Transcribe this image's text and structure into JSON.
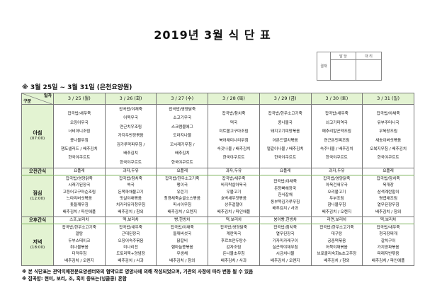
{
  "title": "2019년 3월 식 단 표",
  "approval": {
    "label": "결재",
    "cols": [
      "담 당",
      "대 리"
    ]
  },
  "subtitle": "※ 3월 25일 ~ 3월 31일 (은천요양원)",
  "table": {
    "corner_top": "일자",
    "corner_bottom": "구분",
    "days": [
      "3 / 25 (월)",
      "3 / 26 (화)",
      "3 / 27 (수)",
      "3 / 28 (목)",
      "3 / 29 (금)",
      "3 / 30 (토)",
      "3 / 31 (일)"
    ],
    "rows": [
      {
        "key": "breakfast",
        "label": "아침",
        "time": "(07:00)",
        "cells": [
          [
            "잡곡밥/새우죽",
            "오징어무국",
            "너비아니조림",
            "콩나물무침",
            "햄도샐러드 / 배추김치",
            "한국야쿠르트"
          ],
          [
            "잡곡밥/야채죽",
            "어묵무국",
            "연근치우조림",
            "가지두반장볶음",
            "김가루꼭파무침 /",
            "배추김치",
            "한국야쿠르트"
          ],
          [
            "잡곡밥/영양닭죽",
            "소고기무국",
            "스크램블에그",
            "도라지나물",
            "꼬시래기무침 /",
            "배추김치",
            "한국야쿠르트"
          ],
          [
            "잡곡밥/참치죽",
            "떡국",
            "미트볼고구마조림",
            "북어채미나리무침",
            "숙갓나물 / 배추김치",
            "한국야쿠르트"
          ],
          [
            "잡곡밥/한우소고기죽",
            "콩나물국",
            "돼지고기피망볶음",
            "아몬드멸치볶음",
            "얼갈이나물 / 배추김치",
            "한국야쿠르트"
          ],
          [
            "잡곡밥/새우죽",
            "쇠고기미역국",
            "메추리알곤약조림",
            "연근돈민찌조림",
            "숙주나물 / 배추김치",
            "한국야쿠르트"
          ],
          [
            "잡곡밥/야채죽",
            "유부주머니국",
            "우육장조림",
            "새송이버섯볶음",
            "오복지무침 / 배추김치",
            "한국야쿠르트"
          ]
        ]
      },
      {
        "key": "snack",
        "label": "오전간식",
        "time": "",
        "cells": [
          [
            "요플레"
          ],
          [
            "과자,두유"
          ],
          [
            "요플레"
          ],
          [
            "과자,두유"
          ],
          [
            "요플레"
          ],
          [
            "과자,두유"
          ],
          [
            "요플레"
          ]
        ]
      },
      {
        "key": "lunch",
        "label": "점심",
        "time": "(12:00)",
        "cells": [
          [
            "잡곡밥/영양닭죽",
            "시래기된장국",
            "고등어고구마순조림",
            "느타리버섯볶음",
            "톳들깨무침",
            "배추김치 / 파인애플"
          ],
          [
            "잡곡밥/참치죽",
            "쑥국",
            "돈목파채불고기",
            "맛살야채볶음",
            "치커리유자청무침",
            "배추김치 / 참외"
          ],
          [
            "잡곡밥/한우소고기죽",
            "팽이국",
            "유린기",
            "청경채죽순굴소스볶음",
            "파시아무침",
            "배추김치 / 오렌지"
          ],
          [
            "잡곡밥/새우죽",
            "바지락살아욱국",
            "우불고기",
            "호박새우젓볶음",
            "상추겉절이",
            "배추김치 / 파인애플"
          ],
          [
            "잡곡밥/야채죽",
            "돈등뼈해장국",
            "한식잡채",
            "동부묵김가루무침",
            "배추김치 / 사과"
          ],
          [
            "잡곡밥/영양닭죽",
            "아욱건새우국",
            "오리불고기",
            "두부조림",
            "참나물무침",
            "배추김치 / 오렌지"
          ],
          [
            "잡곡밥/참치죽",
            "육개장",
            "삼색계란말이",
            "명엽채조림",
            "열무된장무침",
            "배추김치 / 참외"
          ]
        ]
      },
      {
        "key": "snack",
        "label": "오후간식",
        "time": "",
        "cells": [
          [
            "스프,보리차"
          ],
          [
            "떡,보리차"
          ],
          [
            "빵,한방차"
          ],
          [
            "떡,보리차"
          ],
          [
            "붕어빵,한방차"
          ],
          [
            "라면,보리차"
          ],
          [
            "떡,보리차"
          ]
        ]
      },
      {
        "key": "dinner",
        "label": "저녁",
        "time": "(18:00)",
        "cells": [
          [
            "잡곡밥/한우소고기죽",
            "알탕",
            "두부스테이크",
            "취나물볶음",
            "더덕무침",
            "배추김치 / 오렌지"
          ],
          [
            "잡곡밥/새우죽",
            "근대된장국",
            "오징어숙주볶음",
            "미나리전",
            "도토리묵+양념장",
            "배추김치 / 사과"
          ],
          [
            "잡곡밥/야채죽",
            "들깨버섯국",
            "닭갈비",
            "햄마늘쫑볶음",
            "무생채",
            "배추김치 / 참외"
          ],
          [
            "잡곡밥/영양닭죽",
            "계란파국",
            "후르츠만두탕수",
            "감자조림",
            "돈나물초무침",
            "배추김치 / 사과"
          ],
          [
            "잡곡밥/참치죽",
            "열무된장국",
            "가자미카레구이",
            "실곤약야채무침",
            "시금치나물",
            "배추김치 / 오렌지"
          ],
          [
            "잡곡밥/한우소고기죽",
            "대구탕",
            "궁중떡볶음",
            "어묵야채볶음",
            "브로콜리숙회&초고추장",
            "배추김치 / 참외"
          ],
          [
            "잡곡밥/새우죽",
            "청국장찌개",
            "갈치구이",
            "가지양파볶음",
            "파래자반볶음",
            "배추김치 / 파인애플"
          ]
        ]
      }
    ]
  },
  "notes": [
    "※ 본 식단표는 관악치매전문요양센터와의 협약으로 영양사에 의해 작성되었으며, 기관의 사정에 따라 변동 될 수 있음",
    "※ 잡곡밥: 현미, 보리, 조, 흑미 중또는(넝쿨콩) 혼합"
  ],
  "colors": {
    "header_bg": "#e3f3d2",
    "snack_line": "#7bb35a"
  }
}
